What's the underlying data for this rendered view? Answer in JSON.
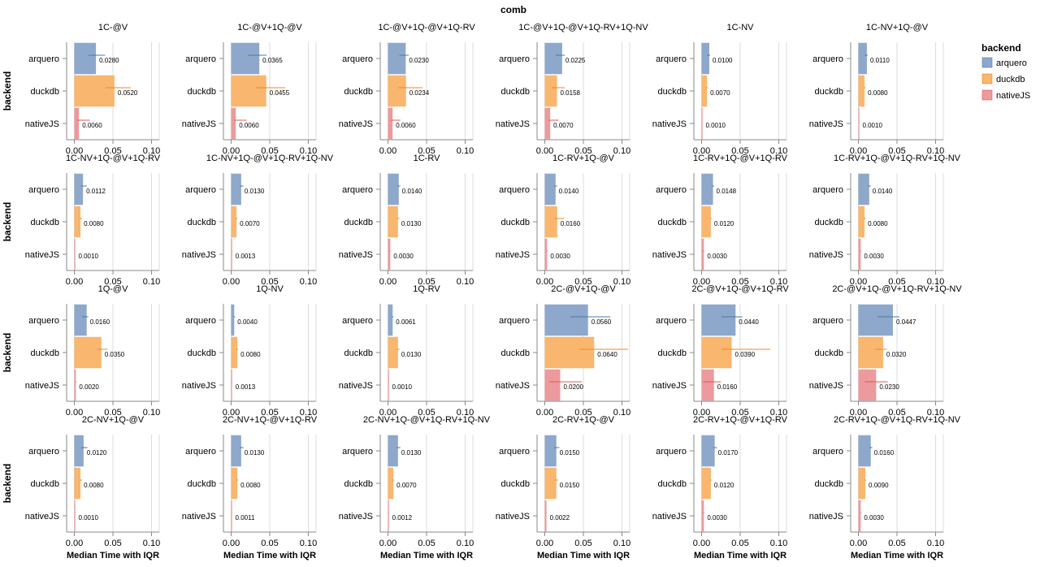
{
  "chart_data": {
    "type": "bar",
    "orientation": "horizontal",
    "facet_title": "comb",
    "facet_row_axis_title": "backend",
    "xlabel": "Median Time with IQR",
    "xlim": [
      -0.01,
      0.11
    ],
    "x_ticks": [
      "0.00",
      "0.05",
      "0.10"
    ],
    "x_tick_values": [
      0.0,
      0.05,
      0.1
    ],
    "categories": [
      "arquero",
      "duckdb",
      "nativeJS"
    ],
    "legend": {
      "title": "backend",
      "position": "right",
      "entries": [
        "arquero",
        "duckdb",
        "nativeJS"
      ]
    },
    "colors": {
      "arquero": "#8ea8cc",
      "duckdb": "#f8b66f",
      "nativeJS": "#ec9a9d"
    },
    "err_colors": {
      "arquero": "#4c78a8",
      "duckdb": "#f58518",
      "nativeJS": "#e45756"
    },
    "panels": [
      {
        "title": "1C-@V",
        "values": [
          0.028,
          0.052,
          0.006
        ],
        "labels": [
          "0.0280",
          "0.0520",
          "0.0060"
        ],
        "iqr": [
          [
            0.018,
            0.04
          ],
          [
            0.04,
            0.073
          ],
          [
            0.004,
            0.02
          ]
        ]
      },
      {
        "title": "1C-@V+1Q-@V",
        "values": [
          0.0365,
          0.0455,
          0.006
        ],
        "labels": [
          "0.0365",
          "0.0455",
          "0.0060"
        ],
        "iqr": [
          [
            0.022,
            0.046
          ],
          [
            0.032,
            0.07
          ],
          [
            0.004,
            0.02
          ]
        ]
      },
      {
        "title": "1C-@V+1Q-@V+1Q-RV",
        "values": [
          0.023,
          0.0234,
          0.006
        ],
        "labels": [
          "0.0230",
          "0.0234",
          "0.0060"
        ],
        "iqr": [
          [
            0.015,
            0.027
          ],
          [
            0.014,
            0.045
          ],
          [
            0.004,
            0.016
          ]
        ]
      },
      {
        "title": "1C-@V+1Q-@V+1Q-RV+1Q-NV",
        "values": [
          0.0225,
          0.0158,
          0.007
        ],
        "labels": [
          "0.0225",
          "0.0158",
          "0.0070"
        ],
        "iqr": [
          [
            0.014,
            0.026
          ],
          [
            0.009,
            0.026
          ],
          [
            0.005,
            0.018
          ]
        ]
      },
      {
        "title": "1C-NV",
        "values": [
          0.01,
          0.007,
          0.001
        ],
        "labels": [
          "0.0100",
          "0.0070",
          "0.0010"
        ],
        "iqr": [
          [
            0.007,
            0.011
          ],
          [
            0.006,
            0.008
          ],
          [
            0.0008,
            0.0012
          ]
        ]
      },
      {
        "title": "1C-NV+1Q-@V",
        "values": [
          0.011,
          0.008,
          0.001
        ],
        "labels": [
          "0.0110",
          "0.0080",
          "0.0010"
        ],
        "iqr": [
          [
            0.008,
            0.012
          ],
          [
            0.007,
            0.009
          ],
          [
            0.0008,
            0.0012
          ]
        ]
      },
      {
        "title": "1C-NV+1Q-@V+1Q-RV",
        "values": [
          0.0112,
          0.008,
          0.001
        ],
        "labels": [
          "0.0112",
          "0.0080",
          "0.0010"
        ],
        "iqr": [
          [
            0.009,
            0.016
          ],
          [
            0.007,
            0.01
          ],
          [
            0.0008,
            0.0012
          ]
        ]
      },
      {
        "title": "1C-NV+1Q-@V+1Q-RV+1Q-NV",
        "values": [
          0.013,
          0.007,
          0.0013
        ],
        "labels": [
          "0.0130",
          "0.0070",
          "0.0013"
        ],
        "iqr": [
          [
            0.011,
            0.016
          ],
          [
            0.006,
            0.008
          ],
          [
            0.001,
            0.0016
          ]
        ]
      },
      {
        "title": "1C-RV",
        "values": [
          0.014,
          0.013,
          0.003
        ],
        "labels": [
          "0.0140",
          "0.0130",
          "0.0030"
        ],
        "iqr": [
          [
            0.012,
            0.016
          ],
          [
            0.012,
            0.015
          ],
          [
            0.0025,
            0.0035
          ]
        ]
      },
      {
        "title": "1C-RV+1Q-@V",
        "values": [
          0.014,
          0.016,
          0.003
        ],
        "labels": [
          "0.0140",
          "0.0160",
          "0.0030"
        ],
        "iqr": [
          [
            0.012,
            0.016
          ],
          [
            0.013,
            0.025
          ],
          [
            0.0025,
            0.0035
          ]
        ]
      },
      {
        "title": "1C-RV+1Q-@V+1Q-RV",
        "values": [
          0.0148,
          0.012,
          0.003
        ],
        "labels": [
          "0.0148",
          "0.0120",
          "0.0030"
        ],
        "iqr": [
          [
            0.013,
            0.016
          ],
          [
            0.011,
            0.013
          ],
          [
            0.0025,
            0.0035
          ]
        ]
      },
      {
        "title": "1C-RV+1Q-@V+1Q-RV+1Q-NV",
        "values": [
          0.014,
          0.008,
          0.003
        ],
        "labels": [
          "0.0140",
          "0.0080",
          "0.0030"
        ],
        "iqr": [
          [
            0.012,
            0.016
          ],
          [
            0.007,
            0.009
          ],
          [
            0.0025,
            0.0035
          ]
        ]
      },
      {
        "title": "1Q-@V",
        "values": [
          0.016,
          0.035,
          0.002
        ],
        "labels": [
          "0.0160",
          "0.0350",
          "0.0020"
        ],
        "iqr": [
          [
            0.01,
            0.018
          ],
          [
            0.03,
            0.043
          ],
          [
            0.0015,
            0.0025
          ]
        ]
      },
      {
        "title": "1Q-NV",
        "values": [
          0.004,
          0.008,
          0.0013
        ],
        "labels": [
          "0.0040",
          "0.0080",
          "0.0013"
        ],
        "iqr": [
          [
            0.003,
            0.005
          ],
          [
            0.007,
            0.009
          ],
          [
            0.001,
            0.0016
          ]
        ]
      },
      {
        "title": "1Q-RV",
        "values": [
          0.0061,
          0.013,
          0.001
        ],
        "labels": [
          "0.0061",
          "0.0130",
          "0.0010"
        ],
        "iqr": [
          [
            0.005,
            0.007
          ],
          [
            0.012,
            0.015
          ],
          [
            0.0008,
            0.0012
          ]
        ]
      },
      {
        "title": "2C-@V+1Q-@V",
        "values": [
          0.056,
          0.064,
          0.02
        ],
        "labels": [
          "0.0560",
          "0.0640",
          "0.0200"
        ],
        "iqr": [
          [
            0.033,
            0.085
          ],
          [
            0.045,
            0.108
          ],
          [
            0.006,
            0.048
          ]
        ]
      },
      {
        "title": "2C-@V+1Q-@V+1Q-RV",
        "values": [
          0.044,
          0.039,
          0.016
        ],
        "labels": [
          "0.0440",
          "0.0390",
          "0.0160"
        ],
        "iqr": [
          [
            0.026,
            0.053
          ],
          [
            0.026,
            0.089
          ],
          [
            0.002,
            0.025
          ]
        ]
      },
      {
        "title": "2C-@V+1Q-@V+1Q-RV+1Q-NV",
        "values": [
          0.0447,
          0.032,
          0.023
        ],
        "labels": [
          "0.0447",
          "0.0320",
          "0.0230"
        ],
        "iqr": [
          [
            0.025,
            0.053
          ],
          [
            0.022,
            0.037
          ],
          [
            0.008,
            0.038
          ]
        ]
      },
      {
        "title": "2C-NV+1Q-@V",
        "values": [
          0.012,
          0.008,
          0.001
        ],
        "labels": [
          "0.0120",
          "0.0080",
          "0.0010"
        ],
        "iqr": [
          [
            0.009,
            0.017
          ],
          [
            0.007,
            0.01
          ],
          [
            0.0008,
            0.0012
          ]
        ]
      },
      {
        "title": "2C-NV+1Q-@V+1Q-RV",
        "values": [
          0.013,
          0.008,
          0.0011
        ],
        "labels": [
          "0.0130",
          "0.0080",
          "0.0011"
        ],
        "iqr": [
          [
            0.011,
            0.016
          ],
          [
            0.007,
            0.009
          ],
          [
            0.0009,
            0.0013
          ]
        ]
      },
      {
        "title": "2C-NV+1Q-@V+1Q-RV+1Q-NV",
        "values": [
          0.013,
          0.007,
          0.0012
        ],
        "labels": [
          "0.0130",
          "0.0070",
          "0.0012"
        ],
        "iqr": [
          [
            0.011,
            0.016
          ],
          [
            0.006,
            0.008
          ],
          [
            0.001,
            0.0014
          ]
        ]
      },
      {
        "title": "2C-RV+1Q-@V",
        "values": [
          0.015,
          0.015,
          0.0022
        ],
        "labels": [
          "0.0150",
          "0.0150",
          "0.0022"
        ],
        "iqr": [
          [
            0.012,
            0.019
          ],
          [
            0.013,
            0.017
          ],
          [
            0.002,
            0.0025
          ]
        ]
      },
      {
        "title": "2C-RV+1Q-@V+1Q-RV",
        "values": [
          0.017,
          0.012,
          0.003
        ],
        "labels": [
          "0.0170",
          "0.0120",
          "0.0030"
        ],
        "iqr": [
          [
            0.015,
            0.02
          ],
          [
            0.011,
            0.013
          ],
          [
            0.0025,
            0.0035
          ]
        ]
      },
      {
        "title": "2C-RV+1Q-@V+1Q-RV+1Q-NV",
        "values": [
          0.016,
          0.009,
          0.003
        ],
        "labels": [
          "0.0160",
          "0.0090",
          "0.0030"
        ],
        "iqr": [
          [
            0.014,
            0.018
          ],
          [
            0.008,
            0.01
          ],
          [
            0.0025,
            0.0035
          ]
        ]
      }
    ]
  }
}
